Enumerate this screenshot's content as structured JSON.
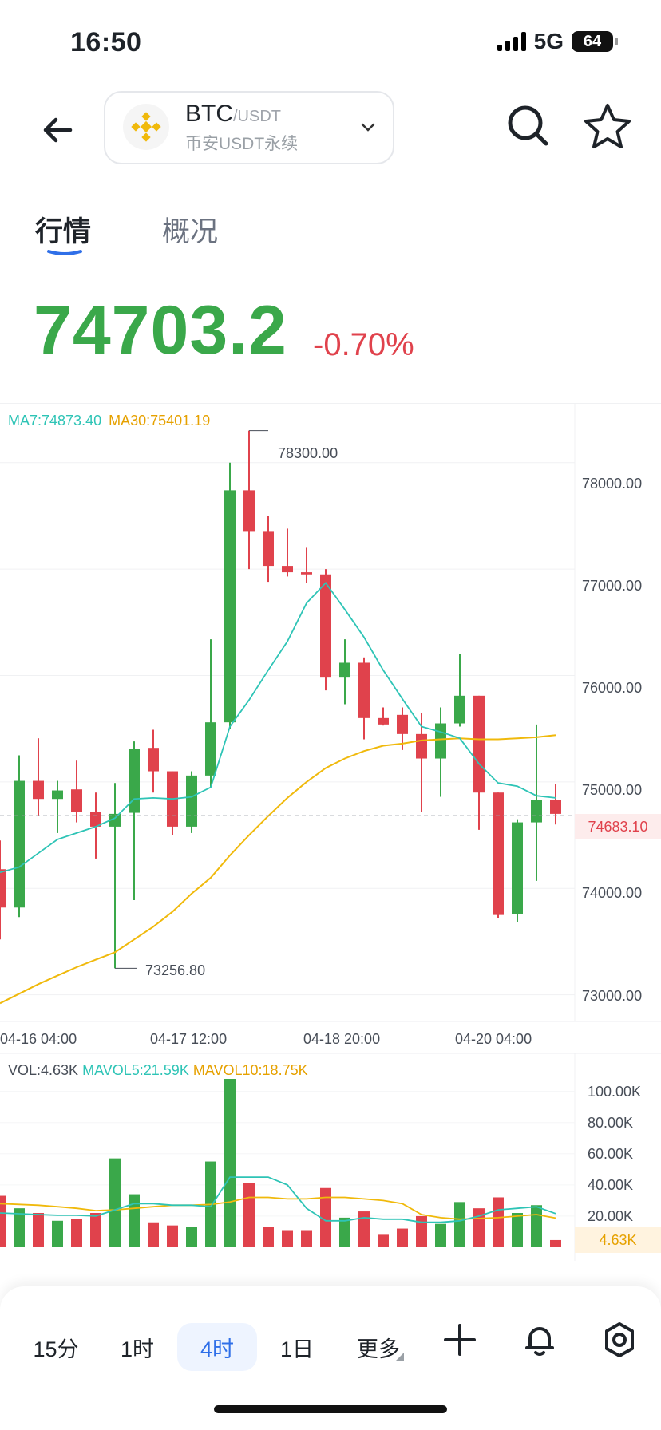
{
  "status": {
    "time": "16:50",
    "network": "5G",
    "battery": "64"
  },
  "header": {
    "base": "BTC",
    "quote": "/USDT",
    "market": "币安USDT永续"
  },
  "tabs": [
    {
      "label": "行情",
      "active": true
    },
    {
      "label": "概况",
      "active": false
    }
  ],
  "ticker": {
    "price": "74703.2",
    "change": "-0.70%"
  },
  "legend": {
    "ma7": "MA7:74873.40",
    "ma30": "MA30:75401.19"
  },
  "colors": {
    "up": "#3aa84a",
    "down": "#e0424c",
    "ma7": "#2ec4b6",
    "ma30": "#f0b90b",
    "accent": "#2f6fe8"
  },
  "chart_data": {
    "type": "candlestick",
    "interval": "4时",
    "y_ticks": [
      "78000.00",
      "77000.00",
      "76000.00",
      "75000.00",
      "74000.00",
      "73000.00"
    ],
    "x_ticks": [
      "04-16 04:00",
      "04-17 12:00",
      "04-18 20:00",
      "04-20 04:00"
    ],
    "ylim": [
      72900,
      78500
    ],
    "current_price_label": "74683.10",
    "current_price": 74683.1,
    "high_label": "78300.00",
    "low_label": "73256.80",
    "candles": [
      {
        "o": 74180,
        "h": 74450,
        "l": 73520,
        "c": 73820
      },
      {
        "o": 73820,
        "h": 75250,
        "l": 73730,
        "c": 75010
      },
      {
        "o": 75010,
        "h": 75410,
        "l": 74680,
        "c": 74840
      },
      {
        "o": 74840,
        "h": 75010,
        "l": 74520,
        "c": 74920
      },
      {
        "o": 74930,
        "h": 75200,
        "l": 74620,
        "c": 74720
      },
      {
        "o": 74720,
        "h": 74900,
        "l": 74280,
        "c": 74580
      },
      {
        "o": 74580,
        "h": 74990,
        "l": 73250,
        "c": 74700
      },
      {
        "o": 74710,
        "h": 75380,
        "l": 73890,
        "c": 75310
      },
      {
        "o": 75320,
        "h": 75490,
        "l": 74900,
        "c": 75100
      },
      {
        "o": 75100,
        "h": 75100,
        "l": 74500,
        "c": 74580
      },
      {
        "o": 74580,
        "h": 75100,
        "l": 74520,
        "c": 75060
      },
      {
        "o": 75060,
        "h": 76340,
        "l": 74950,
        "c": 75560
      },
      {
        "o": 75560,
        "h": 78000,
        "l": 75500,
        "c": 77740
      },
      {
        "o": 77740,
        "h": 78300,
        "l": 77000,
        "c": 77350
      },
      {
        "o": 77350,
        "h": 77500,
        "l": 76880,
        "c": 77030
      },
      {
        "o": 77030,
        "h": 77380,
        "l": 76930,
        "c": 76970
      },
      {
        "o": 76970,
        "h": 77200,
        "l": 76870,
        "c": 76950
      },
      {
        "o": 76950,
        "h": 77000,
        "l": 75860,
        "c": 75980
      },
      {
        "o": 75980,
        "h": 76340,
        "l": 75730,
        "c": 76120
      },
      {
        "o": 76120,
        "h": 76170,
        "l": 75400,
        "c": 75600
      },
      {
        "o": 75600,
        "h": 75700,
        "l": 75530,
        "c": 75540
      },
      {
        "o": 75630,
        "h": 75700,
        "l": 75300,
        "c": 75450
      },
      {
        "o": 75450,
        "h": 75650,
        "l": 74720,
        "c": 75220
      },
      {
        "o": 75220,
        "h": 75700,
        "l": 74860,
        "c": 75550
      },
      {
        "o": 75550,
        "h": 76200,
        "l": 75520,
        "c": 75810
      },
      {
        "o": 75810,
        "h": 75810,
        "l": 74550,
        "c": 74900
      },
      {
        "o": 74900,
        "h": 74900,
        "l": 73720,
        "c": 73750
      },
      {
        "o": 73760,
        "h": 74650,
        "l": 73680,
        "c": 74620
      },
      {
        "o": 74620,
        "h": 75540,
        "l": 74070,
        "c": 74830
      },
      {
        "o": 74830,
        "h": 74980,
        "l": 74600,
        "c": 74700
      }
    ],
    "ma7": [
      74150,
      74200,
      74330,
      74460,
      74520,
      74580,
      74660,
      74840,
      74850,
      74840,
      74860,
      74950,
      75520,
      75770,
      76050,
      76320,
      76680,
      76870,
      76620,
      76360,
      76050,
      75780,
      75520,
      75470,
      75410,
      75170,
      74990,
      74960,
      74870,
      74850
    ],
    "ma30": [
      72920,
      73010,
      73100,
      73180,
      73260,
      73330,
      73400,
      73520,
      73640,
      73780,
      73950,
      74100,
      74310,
      74500,
      74680,
      74850,
      75000,
      75130,
      75220,
      75290,
      75340,
      75360,
      75390,
      75400,
      75410,
      75400,
      75400,
      75410,
      75420,
      75440
    ],
    "volume": {
      "legend_vol": "VOL:4.63K",
      "legend_mavol5": "MAVOL5:21.59K",
      "legend_mavol10": "MAVOL10:18.75K",
      "y_ticks": [
        "100.00K",
        "80.00K",
        "60.00K",
        "40.00K",
        "20.00K"
      ],
      "ylim": [
        0,
        108000
      ],
      "current_label": "4.63K",
      "values": [
        33000,
        25000,
        22000,
        17000,
        18000,
        22000,
        57000,
        34000,
        16000,
        14000,
        13000,
        55000,
        108000,
        41000,
        13000,
        11000,
        11000,
        38000,
        19000,
        23000,
        8000,
        12000,
        20000,
        15000,
        29000,
        25000,
        32000,
        22000,
        27000,
        4630
      ],
      "mavol5": [
        22000,
        21500,
        21000,
        20500,
        20500,
        20000,
        24000,
        28000,
        28000,
        27000,
        27000,
        26000,
        45000,
        45000,
        45000,
        40000,
        25000,
        17000,
        17000,
        19000,
        18000,
        18000,
        16000,
        16000,
        17000,
        20000,
        24000,
        25000,
        26000,
        21590
      ],
      "mavol10": [
        28000,
        27500,
        27000,
        26000,
        25000,
        23500,
        24000,
        25000,
        26000,
        27000,
        27000,
        27500,
        29000,
        32000,
        32000,
        31000,
        31000,
        32000,
        32000,
        31000,
        30000,
        28000,
        21000,
        19000,
        18000,
        18500,
        19000,
        20000,
        21000,
        18750
      ]
    }
  },
  "bottom_nav": [
    {
      "label": "15分"
    },
    {
      "label": "1时"
    },
    {
      "label": "4时",
      "active": true
    },
    {
      "label": "1日"
    },
    {
      "label": "更多"
    }
  ]
}
